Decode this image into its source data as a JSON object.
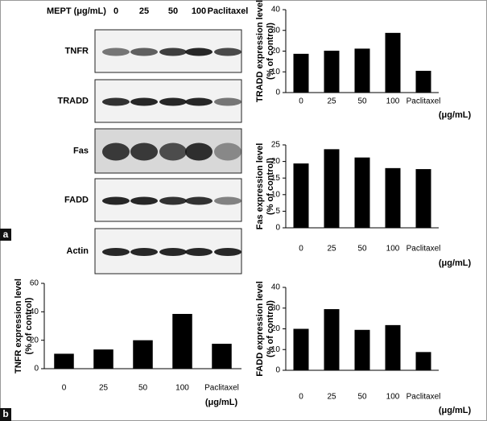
{
  "panel_labels": [
    "a",
    "b"
  ],
  "blot": {
    "header": "MEPT (μg/mL)",
    "lanes": [
      "0",
      "25",
      "50",
      "100",
      "Paclitaxel"
    ],
    "rows": [
      "TNFR",
      "TRADD",
      "Fas",
      "FADD",
      "Actin"
    ]
  },
  "chart_data": [
    {
      "type": "bar",
      "ylabel": [
        "TRADD expression level",
        "(% of control)"
      ],
      "categories": [
        "0",
        "25",
        "50",
        "100",
        "Paclitaxel"
      ],
      "x_unit": "(μg/mL)",
      "values": [
        18.7,
        20.2,
        21.2,
        28.8,
        10.5
      ],
      "color": "#000000",
      "ylim": [
        0,
        40
      ],
      "yticks": [
        0,
        10,
        20,
        30,
        40
      ]
    },
    {
      "type": "bar",
      "ylabel": [
        "Fas expression level",
        "(% of control)"
      ],
      "categories": [
        "0",
        "25",
        "50",
        "100",
        "Paclitaxel"
      ],
      "x_unit": "(μg/mL)",
      "values": [
        19.4,
        23.7,
        21.2,
        18.0,
        17.7
      ],
      "color": "#000000",
      "ylim": [
        0,
        25
      ],
      "yticks": [
        0,
        5,
        10,
        15,
        20,
        25
      ]
    },
    {
      "type": "bar",
      "ylabel": [
        "TNFR expression level",
        "(% of control)"
      ],
      "categories": [
        "0",
        "25",
        "50",
        "100",
        "Paclitaxel"
      ],
      "x_unit": "(μg/mL)",
      "values": [
        10.5,
        13.5,
        20.0,
        38.5,
        17.5
      ],
      "color": "#000000",
      "ylim": [
        0,
        60
      ],
      "yticks": [
        0,
        20,
        40,
        60
      ]
    },
    {
      "type": "bar",
      "ylabel": [
        "FADD expression level",
        "(% of control)"
      ],
      "categories": [
        "0",
        "25",
        "50",
        "100",
        "Paclitaxel"
      ],
      "x_unit": "(μg/mL)",
      "values": [
        20.0,
        29.5,
        19.5,
        21.8,
        8.8
      ],
      "color": "#000000",
      "ylim": [
        0,
        40
      ],
      "yticks": [
        0,
        10,
        20,
        30,
        40
      ]
    }
  ]
}
